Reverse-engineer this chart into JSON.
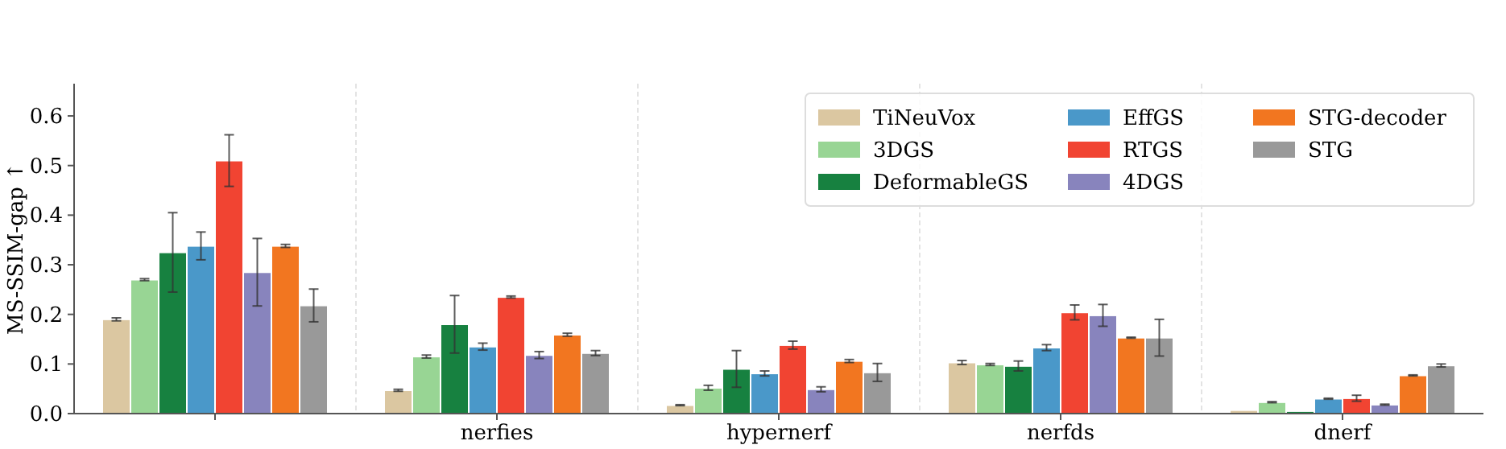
{
  "chart_data": {
    "type": "bar",
    "ylabel": "MS-SSIM-gap ↑",
    "categories": [
      null,
      "nerfies",
      "hypernerf",
      "nerfds",
      "dnerf"
    ],
    "ylim": [
      0,
      0.665
    ],
    "yticks": [
      {
        "value": 0,
        "label": "0.0"
      },
      0.1,
      0.2,
      0.3,
      0.4,
      0.5,
      0.6
    ],
    "grid": "x",
    "legend": "top right",
    "series": [
      {
        "name": "TiNeuVox",
        "color": "#dbc7a1",
        "values": [
          0.19,
          0.047,
          0.017,
          0.103,
          0.007
        ],
        "errors": [
          0.003,
          0.002,
          0.001,
          0.004,
          null
        ]
      },
      {
        "name": "3DGS",
        "color": "#98d594",
        "values": [
          0.27,
          0.115,
          0.052,
          0.099,
          0.023
        ],
        "errors": [
          0.002,
          0.003,
          0.005,
          0.002,
          0.001
        ]
      },
      {
        "name": "DeformableGS",
        "color": "#178140",
        "values": [
          0.325,
          0.18,
          0.09,
          0.096,
          0.005
        ],
        "errors": [
          0.08,
          0.058,
          0.037,
          0.01,
          null
        ]
      },
      {
        "name": "EffGS",
        "color": "#4a98c9",
        "values": [
          0.338,
          0.135,
          0.081,
          0.133,
          0.03
        ],
        "errors": [
          0.028,
          0.007,
          0.005,
          0.006,
          0.001
        ]
      },
      {
        "name": "RTGS",
        "color": "#f14432",
        "values": [
          0.51,
          0.235,
          0.138,
          0.204,
          0.031
        ],
        "errors": [
          0.052,
          0.002,
          0.008,
          0.015,
          0.006
        ]
      },
      {
        "name": "4DGS",
        "color": "#8884bd",
        "values": [
          0.285,
          0.118,
          0.049,
          0.198,
          0.018
        ],
        "errors": [
          0.068,
          0.007,
          0.005,
          0.022,
          0.001
        ]
      },
      {
        "name": "STG-decoder",
        "color": "#f27620",
        "values": [
          0.338,
          0.159,
          0.106,
          0.153,
          0.077
        ],
        "errors": [
          0.003,
          0.003,
          0.003,
          0.001,
          0.001
        ]
      },
      {
        "name": "STG",
        "color": "#999999",
        "values": [
          0.218,
          0.122,
          0.083,
          0.153,
          0.097
        ],
        "errors": [
          0.033,
          0.005,
          0.018,
          0.037,
          0.003
        ]
      }
    ]
  }
}
